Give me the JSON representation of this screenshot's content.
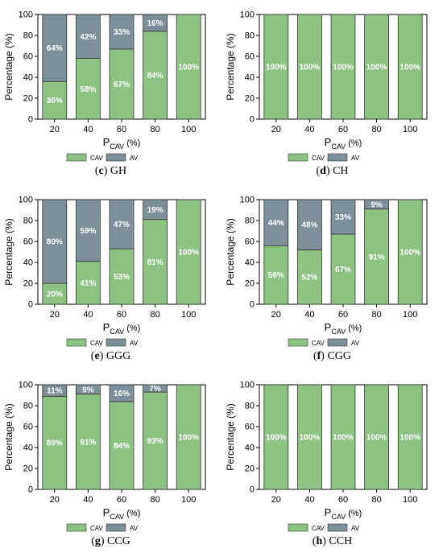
{
  "colors": {
    "cav": "#8CC383",
    "av": "#7D8F98",
    "axis": "#000000",
    "label_text": "#ffffff"
  },
  "axis_text": {
    "ylabel": "Percentage (%)",
    "xlabel_main": "P",
    "xlabel_sub": "CAV",
    "xlabel_unit": "(%)"
  },
  "legend": {
    "cav": "CAV",
    "av": "AV"
  },
  "chart_data": [
    {
      "type": "bar",
      "stacked": true,
      "panel": "c",
      "caption": "GH",
      "categories": [
        "20",
        "40",
        "60",
        "80",
        "100"
      ],
      "series": [
        {
          "name": "CAV",
          "values": [
            36,
            58,
            67,
            84,
            100
          ],
          "labels": [
            "36%",
            "58%",
            "67%",
            "84%",
            "100%"
          ]
        },
        {
          "name": "AV",
          "values": [
            64,
            42,
            33,
            16,
            0
          ],
          "labels": [
            "64%",
            "42%",
            "33%",
            "16%",
            ""
          ]
        }
      ],
      "ylim": [
        0,
        100
      ],
      "yticks": [
        "0",
        "20",
        "40",
        "60",
        "80",
        "100"
      ],
      "legend_position": "bottom"
    },
    {
      "type": "bar",
      "stacked": true,
      "panel": "d",
      "caption": "CH",
      "categories": [
        "20",
        "40",
        "60",
        "80",
        "100"
      ],
      "series": [
        {
          "name": "CAV",
          "values": [
            100,
            100,
            100,
            100,
            100
          ],
          "labels": [
            "100%",
            "100%",
            "100%",
            "100%",
            "100%"
          ]
        },
        {
          "name": "AV",
          "values": [
            0,
            0,
            0,
            0,
            0
          ],
          "labels": [
            "",
            "",
            "",
            "",
            ""
          ]
        }
      ],
      "ylim": [
        0,
        100
      ],
      "yticks": [
        "0",
        "20",
        "40",
        "60",
        "80",
        "100"
      ],
      "legend_position": "bottom"
    },
    {
      "type": "bar",
      "stacked": true,
      "panel": "e",
      "caption": "GGG",
      "categories": [
        "20",
        "40",
        "60",
        "80",
        "100"
      ],
      "series": [
        {
          "name": "CAV",
          "values": [
            20,
            41,
            53,
            81,
            100
          ],
          "labels": [
            "20%",
            "41%",
            "53%",
            "81%",
            "100%"
          ]
        },
        {
          "name": "AV",
          "values": [
            80,
            59,
            47,
            19,
            0
          ],
          "labels": [
            "80%",
            "59%",
            "47%",
            "19%",
            ""
          ]
        }
      ],
      "ylim": [
        0,
        100
      ],
      "yticks": [
        "0",
        "20",
        "40",
        "60",
        "80",
        "100"
      ],
      "legend_position": "bottom"
    },
    {
      "type": "bar",
      "stacked": true,
      "panel": "f",
      "caption": "CGG",
      "categories": [
        "20",
        "40",
        "60",
        "80",
        "100"
      ],
      "series": [
        {
          "name": "CAV",
          "values": [
            56,
            52,
            67,
            91,
            100
          ],
          "labels": [
            "56%",
            "52%",
            "67%",
            "91%",
            "100%"
          ]
        },
        {
          "name": "AV",
          "values": [
            44,
            48,
            33,
            9,
            0
          ],
          "labels": [
            "44%",
            "48%",
            "33%",
            "9%",
            ""
          ]
        }
      ],
      "ylim": [
        0,
        100
      ],
      "yticks": [
        "0",
        "20",
        "40",
        "60",
        "80",
        "100"
      ],
      "legend_position": "bottom"
    },
    {
      "type": "bar",
      "stacked": true,
      "panel": "g",
      "caption": "CCG",
      "categories": [
        "20",
        "40",
        "60",
        "80",
        "100"
      ],
      "series": [
        {
          "name": "CAV",
          "values": [
            89,
            91,
            84,
            93,
            100
          ],
          "labels": [
            "89%",
            "91%",
            "84%",
            "93%",
            "100%"
          ]
        },
        {
          "name": "AV",
          "values": [
            11,
            9,
            16,
            7,
            0
          ],
          "labels": [
            "11%",
            "9%",
            "16%",
            "7%",
            ""
          ]
        }
      ],
      "ylim": [
        0,
        100
      ],
      "yticks": [
        "0",
        "20",
        "40",
        "60",
        "80",
        "100"
      ],
      "legend_position": "bottom"
    },
    {
      "type": "bar",
      "stacked": true,
      "panel": "h",
      "caption": "CCH",
      "categories": [
        "20",
        "40",
        "60",
        "80",
        "100"
      ],
      "series": [
        {
          "name": "CAV",
          "values": [
            100,
            100,
            100,
            100,
            100
          ],
          "labels": [
            "100%",
            "100%",
            "100%",
            "100%",
            "100%"
          ]
        },
        {
          "name": "AV",
          "values": [
            0,
            0,
            0,
            0,
            0
          ],
          "labels": [
            "",
            "",
            "",
            "",
            ""
          ]
        }
      ],
      "ylim": [
        0,
        100
      ],
      "yticks": [
        "0",
        "20",
        "40",
        "60",
        "80",
        "100"
      ],
      "legend_position": "bottom"
    }
  ]
}
